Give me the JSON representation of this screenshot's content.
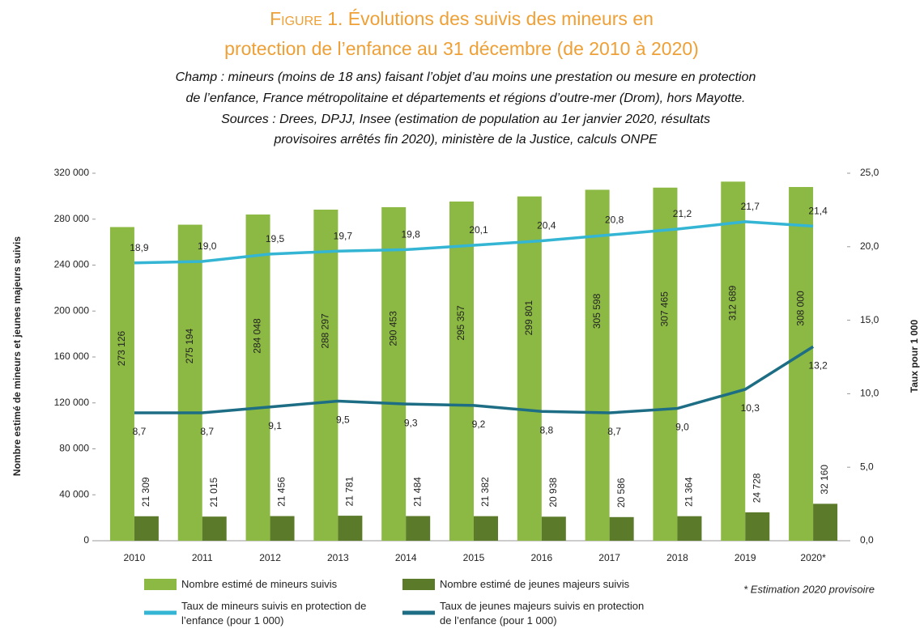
{
  "chart_data": {
    "type": "bar",
    "figure_label": "Figure 1.",
    "title": [
      "Évolutions des suivis des mineurs en",
      "protection de l’enfance au 31 décembre (de 2010 à 2020)"
    ],
    "subtitle": [
      "Champ : mineurs (moins de 18 ans) faisant l’objet d’au moins une prestation ou mesure en protection",
      "de l’enfance, France métropolitaine et départements et régions d’outre-mer (Drom), hors Mayotte.",
      "Sources : Drees, DPJJ, Insee (estimation de population au 1er janvier 2020, résultats",
      "provisoires arrêtés fin 2020), ministère de la Justice, calculs ONPE"
    ],
    "y_label": "Nombre estimé de mineurs et jeunes majeurs suivis",
    "y2_label": "Taux pour 1 000",
    "note": "* Estimation 2020 provisoire",
    "categories": [
      "2010",
      "2011",
      "2012",
      "2013",
      "2014",
      "2015",
      "2016",
      "2017",
      "2018",
      "2019",
      "2020*"
    ],
    "ylim": [
      0,
      320000
    ],
    "yticks": [
      0,
      {
        "value": 40000,
        "label": "40 000"
      },
      {
        "value": 80000,
        "label": "80 000"
      },
      {
        "value": 120000,
        "label": "120 000"
      },
      {
        "value": 160000,
        "label": "160 000"
      },
      {
        "value": 200000,
        "label": "200 000"
      },
      {
        "value": 240000,
        "label": "240 000"
      },
      {
        "value": 280000,
        "label": "280 000"
      },
      {
        "value": 320000,
        "label": "320 000"
      }
    ],
    "y2lim": [
      0,
      25
    ],
    "y2ticks": [
      {
        "value": 0,
        "label": "0,0"
      },
      {
        "value": 5,
        "label": "5,0"
      },
      {
        "value": 10,
        "label": "10,0"
      },
      {
        "value": 15,
        "label": "15,0"
      },
      {
        "value": 20,
        "label": "20,0"
      },
      {
        "value": 25,
        "label": "25,0"
      }
    ],
    "series": [
      {
        "name": "Nombre estimé de mineurs suivis",
        "type": "bar",
        "color": "#8cb943",
        "values": [
          273126,
          275194,
          284048,
          288297,
          290453,
          295357,
          299801,
          305598,
          307465,
          312689,
          308000
        ],
        "value_labels": [
          "273 126",
          "275 194",
          "284 048",
          "288 297",
          "290 453",
          "295 357",
          "299 801",
          "305 598",
          "307 465",
          "312 689",
          "308 000"
        ]
      },
      {
        "name": "Nombre estimé de jeunes majeurs suivis",
        "type": "bar",
        "color": "#5b7b2a",
        "values": [
          21309,
          21015,
          21456,
          21781,
          21484,
          21382,
          20938,
          20586,
          21364,
          24728,
          32160
        ],
        "value_labels": [
          "21 309",
          "21 015",
          "21 456",
          "21 781",
          "21 484",
          "21 382",
          "20 938",
          "20 586",
          "21 364",
          "24 728",
          "32 160"
        ]
      },
      {
        "name": "Taux de mineurs suivis en protection de l’enfance (pour 1 000)",
        "type": "line",
        "axis": "y2",
        "color": "#33b5d3",
        "values": [
          18.9,
          19.0,
          19.5,
          19.7,
          19.8,
          20.1,
          20.4,
          20.8,
          21.2,
          21.7,
          21.4
        ],
        "value_labels": [
          "18,9",
          "19,0",
          "19,5",
          "19,7",
          "19,8",
          "20,1",
          "20,4",
          "20,8",
          "21,2",
          "21,7",
          "21,4"
        ]
      },
      {
        "name": "Taux de jeunes majeurs suivis en protection de l’enfance (pour 1 000)",
        "type": "line",
        "axis": "y2",
        "color": "#1d6d85",
        "values": [
          8.7,
          8.7,
          9.1,
          9.5,
          9.3,
          9.2,
          8.8,
          8.7,
          9.0,
          10.3,
          13.2
        ],
        "value_labels": [
          "8,7",
          "8,7",
          "9,1",
          "9,5",
          "9,3",
          "9,2",
          "8,8",
          "8,7",
          "9,0",
          "10,3",
          "13,2"
        ]
      }
    ]
  }
}
